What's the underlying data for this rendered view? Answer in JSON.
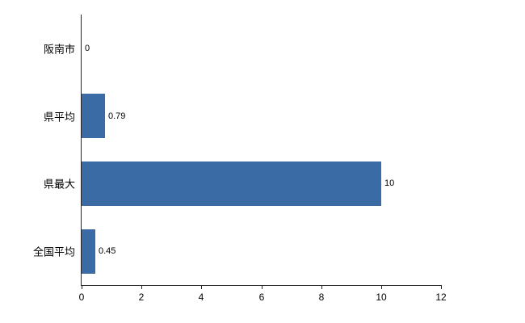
{
  "chart_data": {
    "type": "bar",
    "orientation": "horizontal",
    "title": "",
    "xlabel": "",
    "ylabel": "",
    "categories": [
      "阪南市",
      "県平均",
      "県最大",
      "全国平均"
    ],
    "values": [
      0,
      0.79,
      10,
      0.45
    ],
    "value_labels": [
      "0",
      "0.79",
      "10",
      "0.45"
    ],
    "xlim": [
      0,
      12
    ],
    "x_ticks": [
      0,
      2,
      4,
      6,
      8,
      10,
      12
    ],
    "grid": false,
    "legend": false,
    "colors": {
      "bar_fill": "#3b6ba5",
      "axis": "#262626",
      "background": "#ffffff",
      "text": "#000000"
    }
  }
}
